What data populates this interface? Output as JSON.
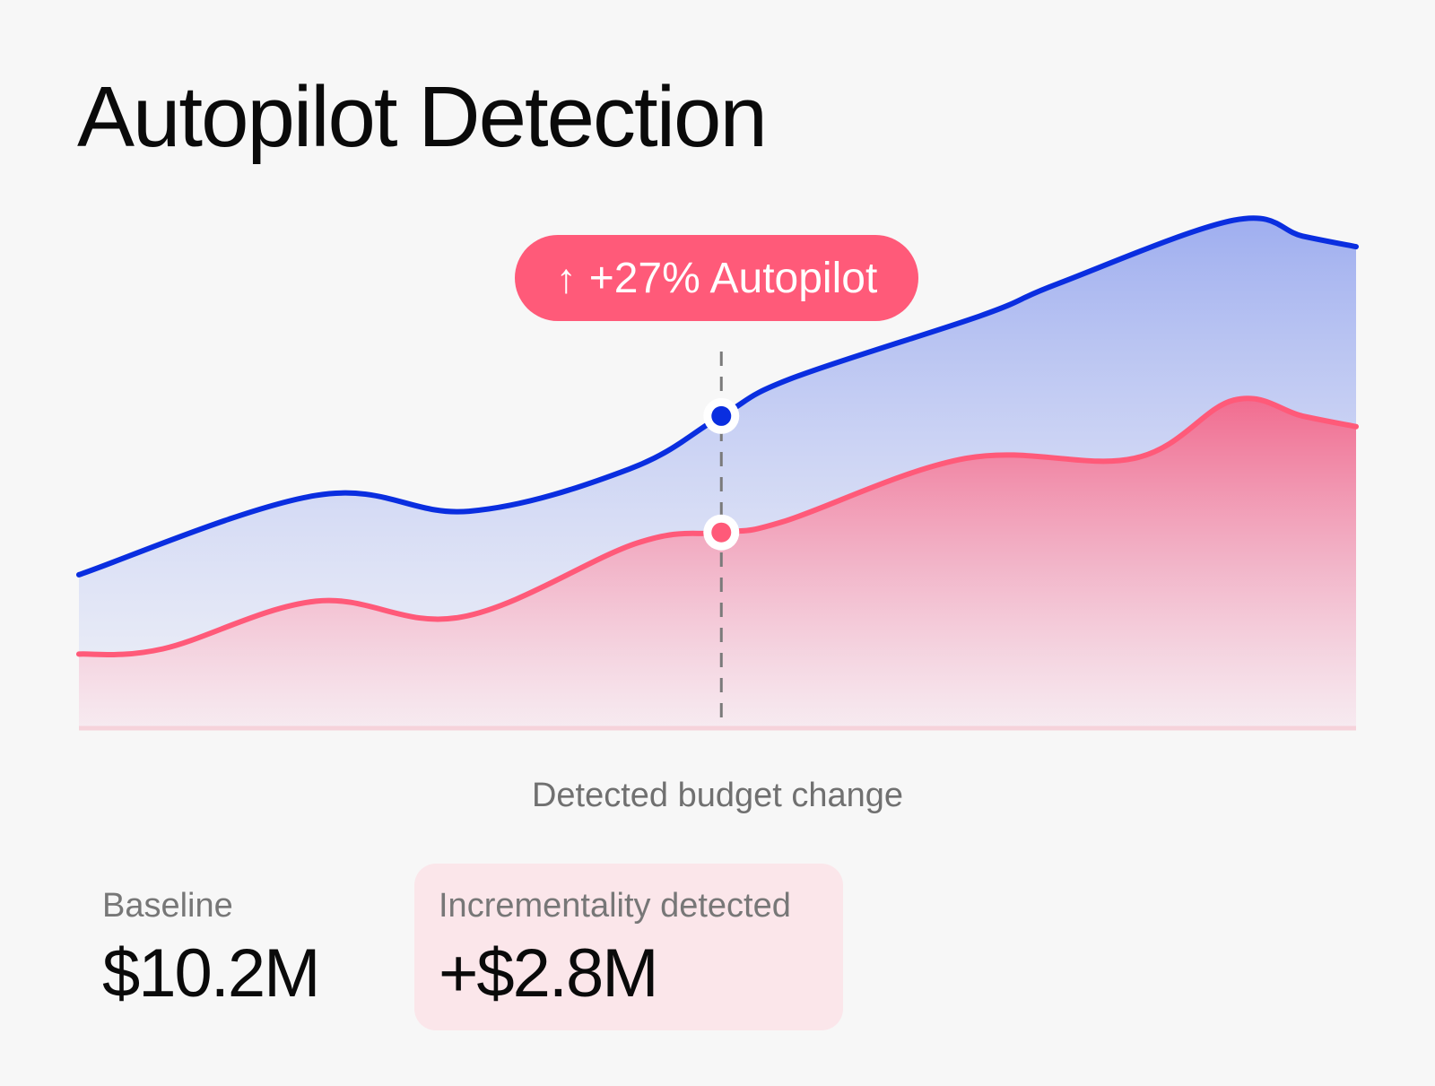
{
  "title": "Autopilot Detection",
  "callout": {
    "arrow_icon": "arrow-up-icon",
    "arrow_glyph": "↑",
    "text": "+27% Autopilot"
  },
  "marker": {
    "label": "Detected budget change"
  },
  "stats": {
    "baseline": {
      "label": "Baseline",
      "value": "$10.2M"
    },
    "incrementality": {
      "label": "Incrementality detected",
      "value": "+$2.8M"
    }
  },
  "colors": {
    "background": "#f7f7f7",
    "autopilot_line": "#0a2ee0",
    "baseline_line": "#ff5a79",
    "callout_bg": "#ff5a79",
    "incrementality_bg": "#fbe6ea"
  },
  "chart_data": {
    "type": "area",
    "title": "",
    "xlabel": "",
    "ylabel": "",
    "grid": false,
    "legend": "none",
    "ylim": [
      0,
      100
    ],
    "marker_x": 8.4,
    "series": [
      {
        "color": "#0a2ee0",
        "points": [
          [
            0,
            29
          ],
          [
            3.1,
            44
          ],
          [
            5.1,
            41
          ],
          [
            7.2,
            49
          ],
          [
            8.4,
            59
          ],
          [
            9.3,
            66
          ],
          [
            11.8,
            78
          ],
          [
            12.8,
            84
          ],
          [
            15.1,
            96
          ],
          [
            16,
            93
          ],
          [
            16.7,
            91
          ]
        ]
      },
      {
        "color": "#ff5a79",
        "points": [
          [
            0,
            14
          ],
          [
            1.1,
            15
          ],
          [
            3.1,
            24
          ],
          [
            5,
            21
          ],
          [
            7.3,
            35
          ],
          [
            8.4,
            37
          ],
          [
            9.2,
            39
          ],
          [
            11.6,
            51
          ],
          [
            13.8,
            51
          ],
          [
            15.1,
            62
          ],
          [
            16,
            59
          ],
          [
            16.7,
            57
          ]
        ]
      }
    ]
  }
}
